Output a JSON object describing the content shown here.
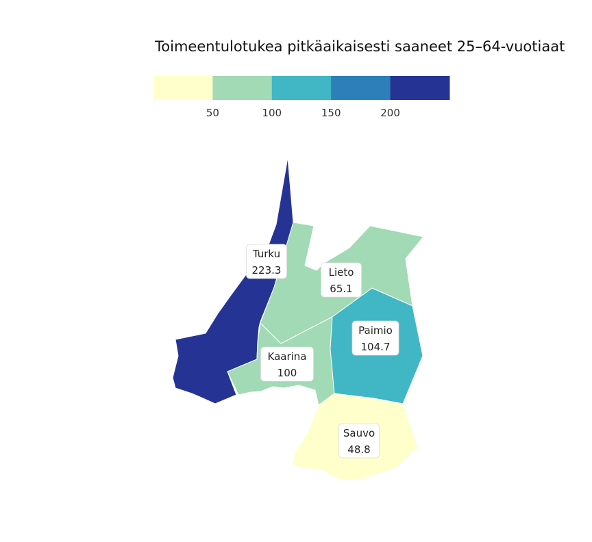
{
  "title": "Toimeentulotukea pitkäaikaisesti saaneet 25–64-vuotiaat",
  "legend": {
    "bins": [
      {
        "color": "#ffffcc"
      },
      {
        "color": "#a1dab4"
      },
      {
        "color": "#41b6c4"
      },
      {
        "color": "#2c7fb8"
      },
      {
        "color": "#253494"
      }
    ],
    "tick_labels": [
      "50",
      "100",
      "150",
      "200"
    ]
  },
  "regions": [
    {
      "id": "turku",
      "name": "Turku",
      "value": 223.3,
      "value_label": "223.3",
      "color": "#253494"
    },
    {
      "id": "lieto",
      "name": "Lieto",
      "value": 65.1,
      "value_label": "65.1",
      "color": "#a1dab4"
    },
    {
      "id": "kaarina",
      "name": "Kaarina",
      "value": 100,
      "value_label": "100",
      "color": "#a1dab4"
    },
    {
      "id": "paimio",
      "name": "Paimio",
      "value": 104.7,
      "value_label": "104.7",
      "color": "#41b6c4"
    },
    {
      "id": "sauvo",
      "name": "Sauvo",
      "value": 48.8,
      "value_label": "48.8",
      "color": "#ffffcc"
    }
  ]
}
